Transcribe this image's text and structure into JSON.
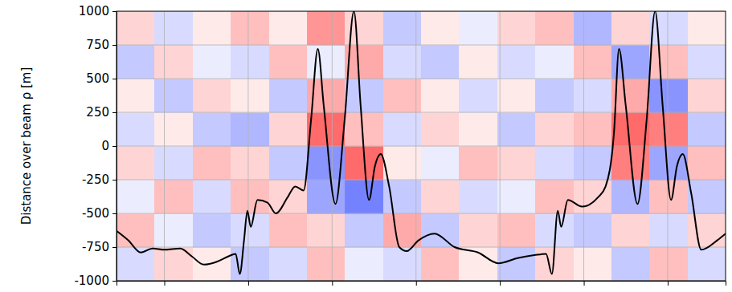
{
  "chart_data": {
    "type": "line",
    "y_label": "Distance over beam ρ [m]",
    "xlim": [
      0.43,
      7.69
    ],
    "xticks": [
      1,
      2,
      3,
      4,
      5,
      6,
      7
    ],
    "ylim": [
      -1000,
      1000
    ],
    "yticks": [
      -1000,
      -750,
      -500,
      -250,
      0,
      250,
      500,
      750,
      1000
    ],
    "grid": true,
    "tick_labels": "y",
    "x": [
      0.43,
      0.57,
      0.72,
      0.86,
      1.0,
      1.19,
      1.33,
      1.47,
      1.62,
      1.76,
      1.85,
      1.9,
      1.95,
      1.99,
      2.03,
      2.11,
      2.23,
      2.33,
      2.47,
      2.56,
      2.66,
      2.75,
      2.83,
      2.9,
      3.04,
      3.15,
      3.26,
      3.34,
      3.44,
      3.51,
      3.58,
      3.68,
      3.8,
      3.89,
      4.03,
      4.22,
      4.46,
      4.74,
      4.98,
      5.22,
      5.41,
      5.55,
      5.62,
      5.69,
      5.73,
      5.81,
      5.98,
      6.17,
      6.26,
      6.36,
      6.42,
      6.5,
      6.64,
      6.75,
      6.85,
      6.94,
      7.04,
      7.11,
      7.18,
      7.28,
      7.4,
      7.59,
      7.69
    ],
    "series": [
      {
        "type": "line",
        "color": "#000000",
        "line_style": "solid",
        "values": [
          -630,
          -700,
          -790,
          -760,
          -770,
          -760,
          -820,
          -880,
          -860,
          -820,
          -800,
          -950,
          -700,
          -480,
          -600,
          -400,
          -420,
          -500,
          -380,
          -300,
          -330,
          200,
          720,
          300,
          -430,
          200,
          1000,
          300,
          -400,
          -150,
          -60,
          -300,
          -750,
          -780,
          -700,
          -650,
          -750,
          -790,
          -870,
          -830,
          -810,
          -800,
          -950,
          -480,
          -600,
          -400,
          -450,
          -380,
          -300,
          100,
          720,
          300,
          -430,
          200,
          1000,
          300,
          -400,
          -150,
          -60,
          -350,
          -770,
          -700,
          -650
        ]
      }
    ],
    "heatmap": {
      "zlim": [
        -1,
        1
      ],
      "x_edges": [
        0.43,
        0.88,
        1.34,
        1.79,
        2.25,
        2.7,
        3.15,
        3.61,
        4.06,
        4.51,
        4.97,
        5.42,
        5.88,
        6.33,
        6.78,
        7.24,
        7.69
      ],
      "y_edges": [
        -1000,
        -750,
        -500,
        -250,
        0,
        250,
        500,
        750,
        1000
      ],
      "cells": [
        [
          -0.2,
          0.2,
          0.1,
          -0.3,
          -0.2,
          0.3,
          -0.1,
          -0.2,
          0.3,
          0.1,
          -0.3,
          0.2,
          0.1,
          -0.3,
          0.3,
          -0.2
        ],
        [
          0.3,
          -0.1,
          -0.3,
          -0.2,
          0.3,
          0.2,
          -0.3,
          0.4,
          -0.3,
          0.2,
          0.3,
          -0.2,
          -0.3,
          0.2,
          -0.2,
          0.2
        ],
        [
          -0.1,
          0.3,
          -0.2,
          0.3,
          0.2,
          -0.5,
          -0.7,
          -0.3,
          0.2,
          -0.2,
          -0.1,
          0.3,
          0.2,
          -0.4,
          0.3,
          -0.3
        ],
        [
          0.2,
          -0.2,
          0.3,
          0.2,
          -0.3,
          -0.6,
          0.7,
          0.1,
          -0.1,
          0.3,
          0.2,
          -0.2,
          -0.3,
          0.6,
          -0.5,
          0.3
        ],
        [
          -0.2,
          0.1,
          -0.3,
          -0.4,
          0.2,
          0.7,
          0.3,
          -0.2,
          0.2,
          0.1,
          -0.3,
          0.2,
          0.3,
          0.7,
          0.6,
          -0.3
        ],
        [
          0.1,
          -0.3,
          0.2,
          0.1,
          -0.3,
          0.4,
          -0.3,
          0.3,
          0.1,
          -0.2,
          0.1,
          -0.3,
          -0.2,
          0.4,
          -0.6,
          0.2
        ],
        [
          -0.3,
          0.2,
          -0.1,
          -0.2,
          0.3,
          -0.1,
          0.4,
          -0.2,
          -0.3,
          0.1,
          -0.2,
          -0.1,
          0.3,
          -0.5,
          0.3,
          -0.2
        ],
        [
          0.2,
          -0.2,
          0.1,
          0.3,
          0.1,
          0.5,
          0.2,
          -0.3,
          0.1,
          -0.1,
          0.2,
          0.3,
          -0.4,
          0.2,
          -0.2,
          0.1
        ]
      ]
    }
  }
}
